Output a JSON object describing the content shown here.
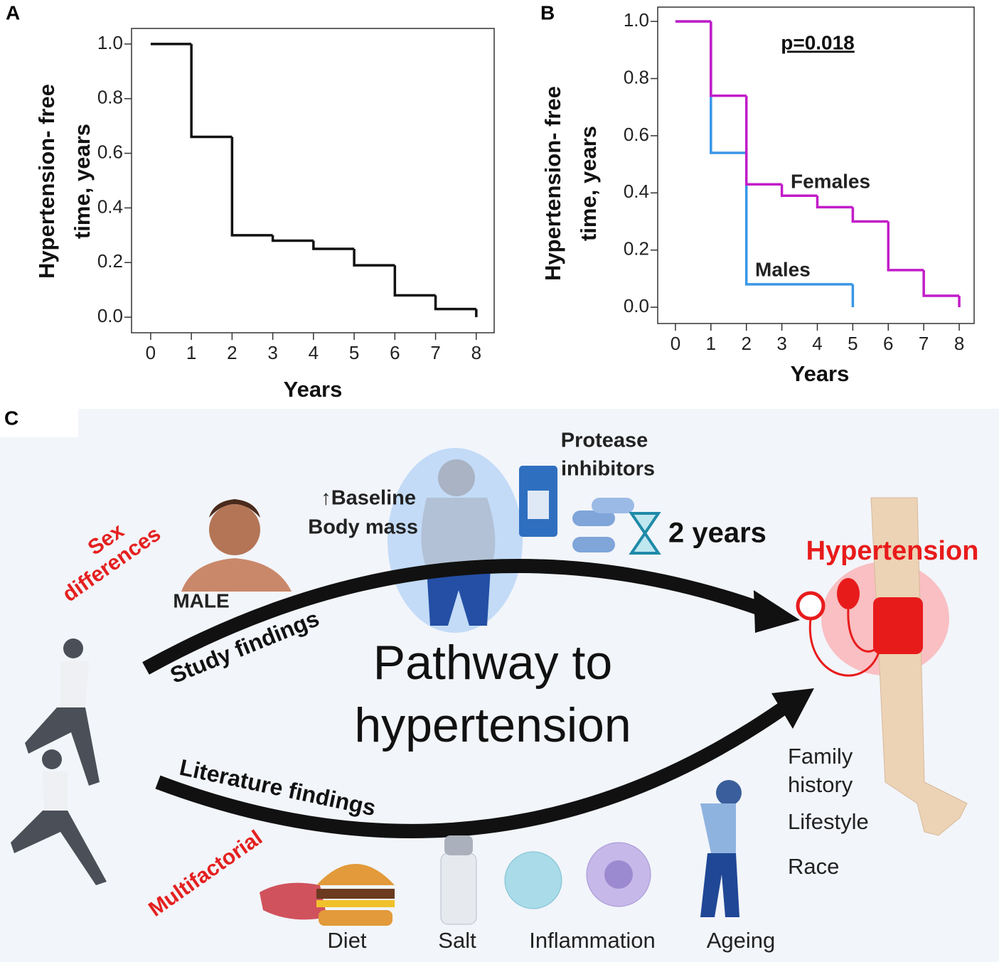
{
  "chart_data": [
    {
      "type": "step",
      "label": "A",
      "xlabel": "Years",
      "ylabel": [
        "Hypertension- free",
        "time, years"
      ],
      "xlim": [
        -0.47,
        8.44
      ],
      "ylim": [
        -0.057,
        1.057
      ],
      "xticks": [
        0,
        1,
        2,
        3,
        4,
        5,
        6,
        7,
        8
      ],
      "yticks": [
        {
          "value": 0,
          "label": "0.0"
        },
        0.2,
        0.4,
        0.6,
        0.8,
        {
          "value": 1,
          "label": "1.0"
        }
      ],
      "series": [
        {
          "color": "#111111",
          "x": [
            0,
            1,
            2,
            3,
            4,
            5,
            6,
            7,
            8
          ],
          "values": [
            1.0,
            0.66,
            0.3,
            0.28,
            0.25,
            0.19,
            0.08,
            0.03,
            0.0
          ]
        }
      ]
    },
    {
      "type": "step",
      "label": "B",
      "xlabel": "Years",
      "ylabel": [
        "Hypertension- free",
        "time, years"
      ],
      "annotation": "p=0.018",
      "xlim": [
        -0.5,
        8.42
      ],
      "ylim": [
        -0.057,
        1.05
      ],
      "xticks": [
        0,
        1,
        2,
        3,
        4,
        5,
        6,
        7,
        8
      ],
      "yticks": [
        {
          "value": 0,
          "label": "0.0"
        },
        0.2,
        0.4,
        0.6,
        0.8,
        {
          "value": 1,
          "label": "1.0"
        }
      ],
      "series": [
        {
          "name": "Males",
          "color": "#3a96e6",
          "x": [
            0,
            1,
            2,
            5
          ],
          "values": [
            1.0,
            0.54,
            0.08,
            0.0
          ]
        },
        {
          "name": "Females",
          "color": "#c21cc8",
          "x": [
            0,
            1,
            2,
            3,
            4,
            5,
            6,
            7,
            8
          ],
          "values": [
            1.0,
            0.74,
            0.43,
            0.39,
            0.35,
            0.3,
            0.13,
            0.04,
            0.0
          ]
        }
      ]
    }
  ],
  "infographic": {
    "label": "C",
    "sex": [
      "Sex",
      "differences"
    ],
    "male": "MALE",
    "baseline": [
      "↑Baseline",
      "Body mass"
    ],
    "protease": [
      "Protease",
      "inhibitors"
    ],
    "duration": "2 years",
    "outcome": "Hypertension",
    "study": "Study findings",
    "title": [
      "Pathway to",
      "hypertension"
    ],
    "literature": "Literature findings",
    "risks": [
      "Family",
      "history",
      "Lifestyle",
      "Race"
    ],
    "multifactorial": "Multifactorial",
    "factors": [
      "Diet",
      "Salt",
      "Inflammation",
      "Ageing"
    ]
  }
}
